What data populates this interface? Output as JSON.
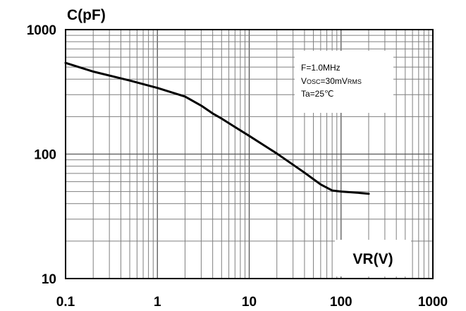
{
  "chart_data": {
    "type": "line",
    "ylabel": "C(pF)",
    "xlabel": "VR(V)",
    "x_scale": "log",
    "y_scale": "log",
    "xlim": [
      0.1,
      1000
    ],
    "ylim": [
      10,
      1000
    ],
    "x_ticks": [
      "0.1",
      "1",
      "10",
      "100",
      "1000"
    ],
    "y_ticks": [
      "10",
      "100",
      "1000"
    ],
    "grid": true,
    "annotation": {
      "line1": "F=1.0MHz",
      "line2_main": "V",
      "line2_sub": "OSC",
      "line2_eq": "=30mV",
      "line2_sub2": "RMS",
      "line3": "Ta=25℃"
    },
    "series": [
      {
        "color": "#000000",
        "x": [
          0.1,
          0.2,
          0.5,
          1,
          2,
          3,
          4,
          5,
          7,
          10,
          20,
          40,
          60,
          80,
          100,
          150,
          200
        ],
        "y": [
          540,
          460,
          390,
          340,
          290,
          245,
          212,
          193,
          165,
          140,
          101,
          71,
          57,
          51,
          50,
          49,
          48
        ]
      }
    ]
  }
}
